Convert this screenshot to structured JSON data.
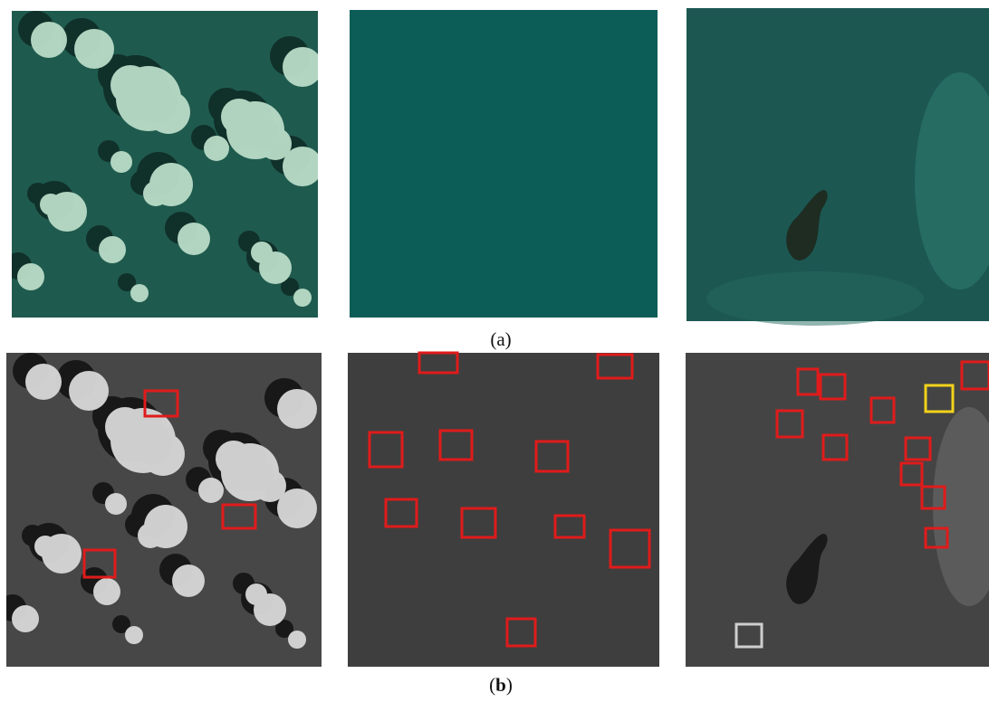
{
  "captions": {
    "a": "(a)",
    "b": {
      "open": "(",
      "letter": "b",
      "close": ")"
    }
  }
}
